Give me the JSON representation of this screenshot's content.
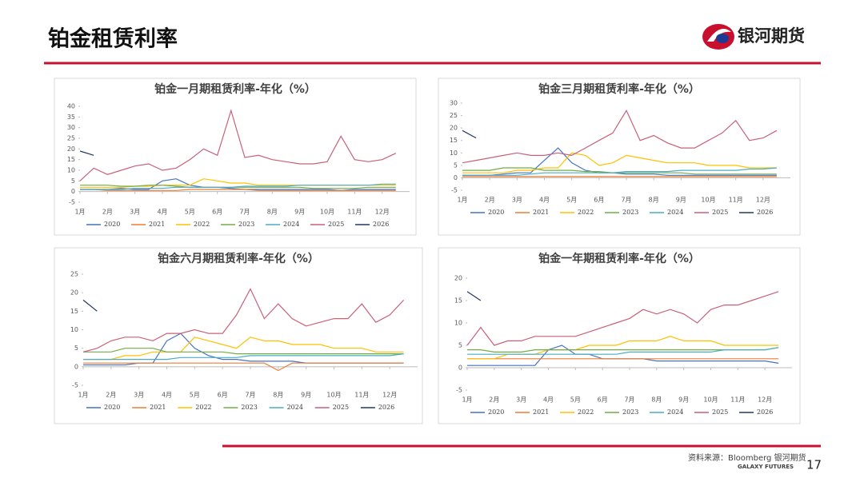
{
  "page": {
    "title": "铂金租赁利率",
    "logo": "银河期货",
    "source": "资料来源：Bloomberg 银河期货",
    "brand": "GALAXY FUTURES",
    "page_number": "17"
  },
  "chart_data": [
    {
      "type": "line",
      "title": "铂金一月期租赁利率-年化（%）",
      "x": [
        1,
        1.5,
        2,
        2.5,
        3,
        3.5,
        4,
        4.5,
        5,
        5.5,
        6,
        6.5,
        7,
        7.5,
        8,
        8.5,
        9,
        9.5,
        10,
        10.5,
        11,
        11.5,
        12,
        12.5
      ],
      "xlim": [
        1,
        13
      ],
      "xticks": [
        {
          "value": 1,
          "label": "1月"
        },
        {
          "value": 2,
          "label": "2月"
        },
        {
          "value": 3,
          "label": "3月"
        },
        {
          "value": 4,
          "label": "4月"
        },
        {
          "value": 5,
          "label": "5月"
        },
        {
          "value": 6,
          "label": "6月"
        },
        {
          "value": 7,
          "label": "7月"
        },
        {
          "value": 8,
          "label": "8月"
        },
        {
          "value": 9,
          "label": "9月"
        },
        {
          "value": 10,
          "label": "10月"
        },
        {
          "value": 11,
          "label": "11月"
        },
        {
          "value": 12,
          "label": "12月"
        }
      ],
      "ylim": [
        -5,
        40
      ],
      "yticks": [
        -5,
        0,
        5,
        10,
        15,
        20,
        25,
        30,
        35,
        40
      ],
      "series": [
        {
          "name": "2020",
          "color": "#4472c4",
          "values": [
            1,
            1,
            1,
            1.5,
            1,
            1,
            5,
            6,
            3,
            2,
            2,
            1.5,
            1,
            1,
            1,
            1,
            1,
            1,
            1,
            0.5,
            1,
            1,
            1,
            1
          ]
        },
        {
          "name": "2021",
          "color": "#ed7d31",
          "values": [
            1,
            1,
            0.5,
            0.5,
            0.5,
            0.5,
            0.5,
            0.5,
            1,
            1,
            1,
            1,
            1,
            0.5,
            0.5,
            0.5,
            0.5,
            0.5,
            0.5,
            0.5,
            0.5,
            0.5,
            0.5,
            0.5
          ]
        },
        {
          "name": "2022",
          "color": "#ffc000",
          "values": [
            2,
            2,
            2,
            2,
            2.5,
            2.5,
            3,
            3,
            3,
            6,
            5,
            4,
            4,
            3,
            3,
            3,
            3,
            3,
            3,
            3,
            3,
            3,
            3,
            3
          ]
        },
        {
          "name": "2023",
          "color": "#70ad47",
          "values": [
            3,
            3,
            3,
            2.5,
            2.5,
            3,
            3,
            2.5,
            2,
            2,
            2,
            2,
            2,
            2,
            2,
            2,
            2,
            1.5,
            1.5,
            1.5,
            1.5,
            2,
            2,
            2
          ]
        },
        {
          "name": "2024",
          "color": "#4bacc6",
          "values": [
            1,
            1,
            1,
            1,
            1.5,
            1.5,
            1.5,
            2,
            2,
            2,
            2,
            2,
            2.5,
            2.5,
            2.5,
            2.5,
            3,
            3,
            3,
            3,
            3,
            3,
            3.5,
            3.5
          ]
        },
        {
          "name": "2025",
          "color": "#c9607a",
          "values": [
            5,
            11,
            8,
            10,
            12,
            13,
            10,
            11,
            15,
            20,
            17,
            38,
            16,
            17,
            15,
            14,
            13,
            13,
            14,
            26,
            15,
            14,
            15,
            18
          ]
        },
        {
          "name": "2026",
          "color": "#1f3864",
          "values": [
            19,
            17,
            null,
            null,
            null,
            null,
            null,
            null,
            null,
            null,
            null,
            null,
            null,
            null,
            null,
            null,
            null,
            null,
            null,
            null,
            null,
            null,
            null,
            null
          ]
        }
      ]
    },
    {
      "type": "line",
      "title": "铂金三月期租赁利率-年化（%）",
      "x": [
        1,
        1.5,
        2,
        2.5,
        3,
        3.5,
        4,
        4.5,
        5,
        5.5,
        6,
        6.5,
        7,
        7.5,
        8,
        8.5,
        9,
        9.5,
        10,
        10.5,
        11,
        11.5,
        12,
        12.5
      ],
      "xlim": [
        1,
        13
      ],
      "xticks": [
        {
          "value": 1,
          "label": "1月"
        },
        {
          "value": 2,
          "label": "2月"
        },
        {
          "value": 3,
          "label": "3月"
        },
        {
          "value": 4,
          "label": "4月"
        },
        {
          "value": 5,
          "label": "5月"
        },
        {
          "value": 6,
          "label": "6月"
        },
        {
          "value": 7,
          "label": "7月"
        },
        {
          "value": 8,
          "label": "8月"
        },
        {
          "value": 9,
          "label": "9月"
        },
        {
          "value": 10,
          "label": "10月"
        },
        {
          "value": 11,
          "label": "11月"
        },
        {
          "value": 12,
          "label": "12月"
        }
      ],
      "ylim": [
        -5,
        30
      ],
      "yticks": [
        -5,
        0,
        5,
        10,
        15,
        20,
        25,
        30
      ],
      "series": [
        {
          "name": "2020",
          "color": "#4472c4",
          "values": [
            1,
            1,
            1,
            1.5,
            2,
            2,
            7,
            12,
            6,
            3,
            2,
            2,
            1.5,
            1.5,
            1.5,
            1,
            1,
            1,
            1,
            1,
            1,
            1,
            1,
            1
          ]
        },
        {
          "name": "2021",
          "color": "#ed7d31",
          "values": [
            0.5,
            0.5,
            0.5,
            0.5,
            0.5,
            0.5,
            0.5,
            0.5,
            0.5,
            0.5,
            0.5,
            0.5,
            0.5,
            0.5,
            0.5,
            0.5,
            0.5,
            0.5,
            0.5,
            0.5,
            0.5,
            0.5,
            0.5,
            0.5
          ]
        },
        {
          "name": "2022",
          "color": "#ffc000",
          "values": [
            2,
            2,
            2,
            2,
            3,
            3,
            4,
            4,
            10,
            9,
            5,
            6,
            9,
            8,
            7,
            6,
            6,
            6,
            5,
            5,
            5,
            4,
            4,
            4
          ]
        },
        {
          "name": "2023",
          "color": "#70ad47",
          "values": [
            3,
            3,
            3,
            4,
            4,
            4,
            3,
            3,
            3,
            2.5,
            2.5,
            2,
            2,
            2,
            2,
            2,
            2,
            1.5,
            1.5,
            1.5,
            1.5,
            1.5,
            1.5,
            1.5
          ]
        },
        {
          "name": "2024",
          "color": "#4bacc6",
          "values": [
            1,
            1,
            1,
            1,
            1,
            1.5,
            2,
            2,
            2,
            2,
            2,
            2,
            2.5,
            2.5,
            2.5,
            2.5,
            3,
            3,
            3,
            3,
            3,
            3.5,
            3.5,
            4
          ]
        },
        {
          "name": "2025",
          "color": "#c9607a",
          "values": [
            6,
            7,
            8,
            9,
            10,
            9,
            9,
            10,
            9,
            12,
            15,
            18,
            27,
            15,
            17,
            14,
            12,
            12,
            15,
            18,
            23,
            15,
            16,
            19
          ]
        },
        {
          "name": "2026",
          "color": "#1f3864",
          "values": [
            19,
            16,
            null,
            null,
            null,
            null,
            null,
            null,
            null,
            null,
            null,
            null,
            null,
            null,
            null,
            null,
            null,
            null,
            null,
            null,
            null,
            null,
            null,
            null
          ]
        }
      ]
    },
    {
      "type": "line",
      "title": "铂金六月期租赁利率-年化（%）",
      "x": [
        1,
        1.5,
        2,
        2.5,
        3,
        3.5,
        4,
        4.5,
        5,
        5.5,
        6,
        6.5,
        7,
        7.5,
        8,
        8.5,
        9,
        9.5,
        10,
        10.5,
        11,
        11.5,
        12,
        12.5
      ],
      "xlim": [
        1,
        13
      ],
      "xticks": [
        {
          "value": 1,
          "label": "1月"
        },
        {
          "value": 2,
          "label": "2月"
        },
        {
          "value": 3,
          "label": "3月"
        },
        {
          "value": 4,
          "label": "4月"
        },
        {
          "value": 5,
          "label": "5月"
        },
        {
          "value": 6,
          "label": "6月"
        },
        {
          "value": 7,
          "label": "7月"
        },
        {
          "value": 8,
          "label": "8月"
        },
        {
          "value": 9,
          "label": "9月"
        },
        {
          "value": 10,
          "label": "10月"
        },
        {
          "value": 11,
          "label": "11月"
        },
        {
          "value": 12,
          "label": "12月"
        }
      ],
      "ylim": [
        -5,
        25
      ],
      "yticks": [
        -5,
        0,
        5,
        10,
        15,
        20,
        25
      ],
      "series": [
        {
          "name": "2020",
          "color": "#4472c4",
          "values": [
            0.5,
            0.5,
            0.5,
            0.5,
            1,
            1,
            7,
            9,
            5,
            3,
            2,
            2,
            1.5,
            1.5,
            1.5,
            1.5,
            1,
            1,
            1,
            1,
            1,
            1,
            1,
            1
          ]
        },
        {
          "name": "2021",
          "color": "#ed7d31",
          "values": [
            1,
            1,
            1,
            1,
            1,
            1,
            1,
            1,
            1,
            1,
            1,
            1,
            1,
            1,
            -1,
            1,
            1,
            1,
            1,
            1,
            1,
            1,
            1,
            1
          ]
        },
        {
          "name": "2022",
          "color": "#ffc000",
          "values": [
            2,
            2,
            2,
            3,
            3,
            4,
            4,
            4,
            8,
            7,
            6,
            5,
            8,
            7,
            7,
            6,
            6,
            6,
            5,
            5,
            5,
            4,
            4,
            4
          ]
        },
        {
          "name": "2023",
          "color": "#70ad47",
          "values": [
            4,
            4,
            4,
            5,
            5,
            5,
            4,
            4,
            4,
            4,
            4,
            3.5,
            3.5,
            3.5,
            3.5,
            3.5,
            3.5,
            3.5,
            3.5,
            3.5,
            3.5,
            3.5,
            3.5,
            3.5
          ]
        },
        {
          "name": "2024",
          "color": "#4bacc6",
          "values": [
            2,
            2,
            2,
            2,
            2,
            2,
            2,
            2.5,
            2.5,
            2.5,
            2.5,
            2.5,
            3,
            3,
            3,
            3,
            3,
            3,
            3,
            3,
            3,
            3,
            3,
            3.5
          ]
        },
        {
          "name": "2025",
          "color": "#c9607a",
          "values": [
            4,
            5,
            7,
            8,
            8,
            7,
            9,
            9,
            10,
            9,
            9,
            14,
            21,
            13,
            17,
            13,
            11,
            12,
            13,
            13,
            17,
            12,
            14,
            18
          ]
        },
        {
          "name": "2026",
          "color": "#1f3864",
          "values": [
            18,
            15,
            null,
            null,
            null,
            null,
            null,
            null,
            null,
            null,
            null,
            null,
            null,
            null,
            null,
            null,
            null,
            null,
            null,
            null,
            null,
            null,
            null,
            null
          ]
        }
      ]
    },
    {
      "type": "line",
      "title": "铂金一年期租赁利率-年化（%）",
      "x": [
        1,
        1.5,
        2,
        2.5,
        3,
        3.5,
        4,
        4.5,
        5,
        5.5,
        6,
        6.5,
        7,
        7.5,
        8,
        8.5,
        9,
        9.5,
        10,
        10.5,
        11,
        11.5,
        12,
        12.5
      ],
      "xlim": [
        1,
        13
      ],
      "xticks": [
        {
          "value": 1,
          "label": "1月"
        },
        {
          "value": 2,
          "label": "2月"
        },
        {
          "value": 3,
          "label": "3月"
        },
        {
          "value": 4,
          "label": "4月"
        },
        {
          "value": 5,
          "label": "5月"
        },
        {
          "value": 6,
          "label": "6月"
        },
        {
          "value": 7,
          "label": "7月"
        },
        {
          "value": 8,
          "label": "8月"
        },
        {
          "value": 9,
          "label": "9月"
        },
        {
          "value": 10,
          "label": "10月"
        },
        {
          "value": 11,
          "label": "11月"
        },
        {
          "value": 12,
          "label": "12月"
        }
      ],
      "ylim": [
        -5,
        20
      ],
      "yticks": [
        -5,
        0,
        5,
        10,
        15,
        20
      ],
      "series": [
        {
          "name": "2020",
          "color": "#4472c4",
          "values": [
            0.5,
            0.5,
            0.5,
            0.5,
            0.5,
            0.5,
            4,
            5,
            3,
            3,
            2,
            2,
            2,
            2,
            1.5,
            1.5,
            1.5,
            1.5,
            1.5,
            1.5,
            1.5,
            1.5,
            1.5,
            1
          ]
        },
        {
          "name": "2021",
          "color": "#ed7d31",
          "values": [
            2,
            2,
            2,
            2,
            2,
            2,
            2,
            2,
            2,
            2,
            2,
            2,
            2,
            2,
            2,
            2,
            2,
            2,
            2,
            2,
            2,
            2,
            2,
            2
          ]
        },
        {
          "name": "2022",
          "color": "#ffc000",
          "values": [
            2,
            2,
            2,
            3,
            3,
            3,
            4,
            4,
            4,
            5,
            5,
            5,
            6,
            6,
            6,
            7,
            6,
            6,
            6,
            5,
            5,
            5,
            5,
            5
          ]
        },
        {
          "name": "2023",
          "color": "#70ad47",
          "values": [
            4,
            4,
            3.5,
            3.5,
            3.5,
            4,
            4,
            4,
            4,
            4,
            4,
            4,
            4,
            4,
            4,
            4,
            4,
            4,
            4,
            4,
            4,
            4,
            4,
            4.5
          ]
        },
        {
          "name": "2024",
          "color": "#4bacc6",
          "values": [
            3,
            3,
            3,
            3,
            3,
            3,
            3,
            3,
            3,
            3,
            3,
            3,
            3.5,
            3.5,
            3.5,
            3.5,
            3.5,
            3.5,
            3.5,
            4,
            4,
            4,
            4,
            4.5
          ]
        },
        {
          "name": "2025",
          "color": "#c9607a",
          "values": [
            5,
            9,
            5,
            6,
            6,
            7,
            7,
            7,
            7,
            8,
            9,
            10,
            11,
            13,
            12,
            13,
            12,
            10,
            13,
            14,
            14,
            15,
            16,
            17
          ]
        },
        {
          "name": "2026",
          "color": "#1f3864",
          "values": [
            17,
            15,
            null,
            null,
            null,
            null,
            null,
            null,
            null,
            null,
            null,
            null,
            null,
            null,
            null,
            null,
            null,
            null,
            null,
            null,
            null,
            null,
            null,
            null
          ]
        }
      ]
    }
  ]
}
